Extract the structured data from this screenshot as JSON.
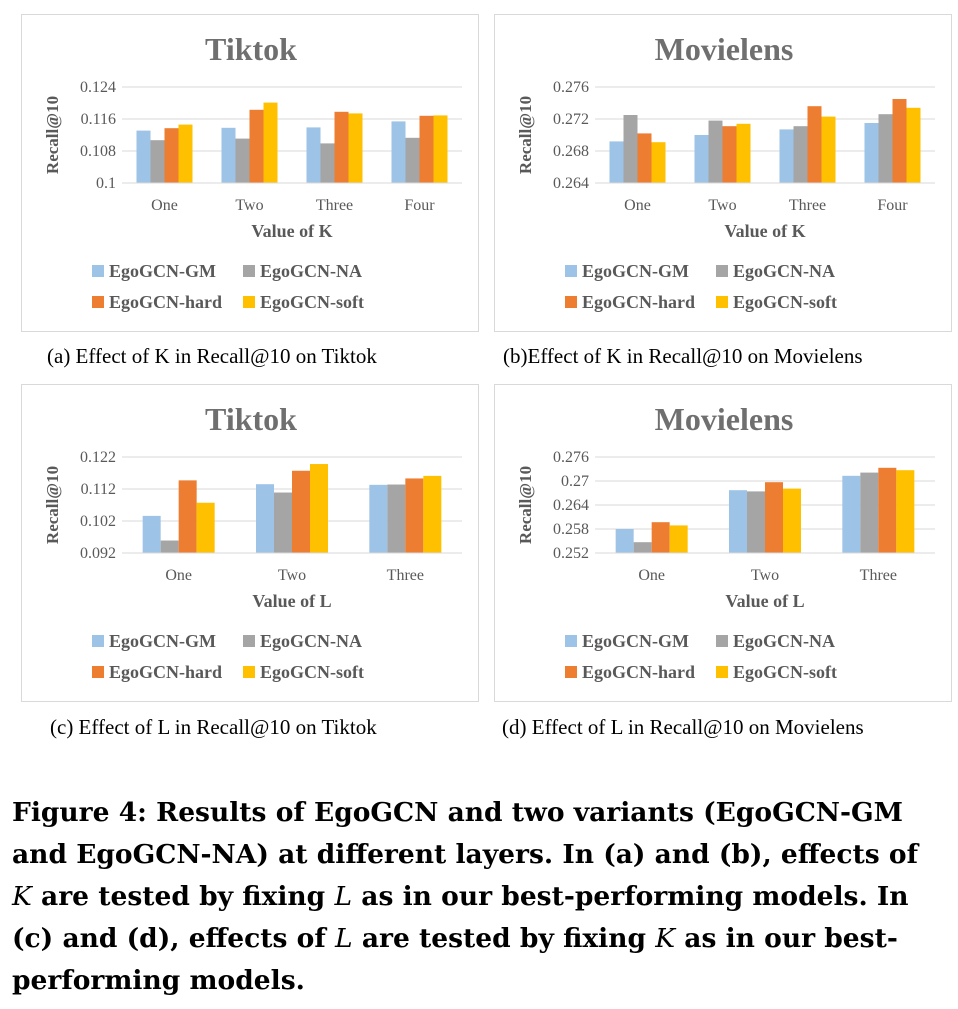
{
  "colors": {
    "gm": "#9dc3e6",
    "na": "#a5a5a5",
    "hard": "#ed7d31",
    "soft": "#ffc000"
  },
  "chart_data": [
    {
      "type": "bar",
      "title": "Tiktok",
      "xlabel": "Value of K",
      "ylabel": "Recall@10",
      "categories": [
        "One",
        "Two",
        "Three",
        "Four"
      ],
      "yticks": [
        "0.1",
        "0.108",
        "0.116",
        "0.124"
      ],
      "ylim": [
        0.1,
        0.124
      ],
      "series": [
        {
          "name": "EgoGCN-GM",
          "color": "#9dc3e6",
          "values": [
            0.1131,
            0.1138,
            0.1139,
            0.1154
          ]
        },
        {
          "name": "EgoGCN-NA",
          "color": "#a5a5a5",
          "values": [
            0.1107,
            0.1111,
            0.1099,
            0.1113
          ]
        },
        {
          "name": "EgoGCN-hard",
          "color": "#ed7d31",
          "values": [
            0.1137,
            0.1183,
            0.1178,
            0.1168
          ]
        },
        {
          "name": "EgoGCN-soft",
          "color": "#ffc000",
          "values": [
            0.1146,
            0.1201,
            0.1174,
            0.1169
          ]
        }
      ],
      "legend_position": "bottom",
      "caption": "(a) Effect of K in Recall@10 on Tiktok"
    },
    {
      "type": "bar",
      "title": "Movielens",
      "xlabel": "Value of K",
      "ylabel": "Recall@10",
      "categories": [
        "One",
        "Two",
        "Three",
        "Four"
      ],
      "yticks": [
        "0.264",
        "0.268",
        "0.272",
        "0.276"
      ],
      "ylim": [
        0.264,
        0.276
      ],
      "series": [
        {
          "name": "EgoGCN-GM",
          "color": "#9dc3e6",
          "values": [
            0.2692,
            0.27,
            0.2707,
            0.2715
          ]
        },
        {
          "name": "EgoGCN-NA",
          "color": "#a5a5a5",
          "values": [
            0.2725,
            0.2718,
            0.2711,
            0.2726
          ]
        },
        {
          "name": "EgoGCN-hard",
          "color": "#ed7d31",
          "values": [
            0.2702,
            0.2711,
            0.2736,
            0.2745
          ]
        },
        {
          "name": "EgoGCN-soft",
          "color": "#ffc000",
          "values": [
            0.2691,
            0.2714,
            0.2723,
            0.2734
          ]
        }
      ],
      "legend_position": "bottom",
      "caption": "(b)Effect of K in Recall@10 on Movielens"
    },
    {
      "type": "bar",
      "title": "Tiktok",
      "xlabel": "Value of L",
      "ylabel": "Recall@10",
      "categories": [
        "One",
        "Two",
        "Three"
      ],
      "yticks": [
        "0.092",
        "0.102",
        "0.112",
        "0.122"
      ],
      "ylim": [
        0.092,
        0.122
      ],
      "series": [
        {
          "name": "EgoGCN-GM",
          "color": "#9dc3e6",
          "values": [
            0.1036,
            0.1135,
            0.1133
          ]
        },
        {
          "name": "EgoGCN-NA",
          "color": "#a5a5a5",
          "values": [
            0.0959,
            0.1109,
            0.1134
          ]
        },
        {
          "name": "EgoGCN-hard",
          "color": "#ed7d31",
          "values": [
            0.1147,
            0.1177,
            0.1153
          ]
        },
        {
          "name": "EgoGCN-soft",
          "color": "#ffc000",
          "values": [
            0.1077,
            0.1198,
            0.1161
          ]
        }
      ],
      "legend_position": "bottom",
      "caption": "(c) Effect of L in Recall@10 on Tiktok"
    },
    {
      "type": "bar",
      "title": "Movielens",
      "xlabel": "Value of L",
      "ylabel": "Recall@10",
      "categories": [
        "One",
        "Two",
        "Three"
      ],
      "yticks": [
        "0.252",
        "0.258",
        "0.264",
        "0.27",
        "0.276"
      ],
      "ylim": [
        0.252,
        0.276
      ],
      "series": [
        {
          "name": "EgoGCN-GM",
          "color": "#9dc3e6",
          "values": [
            0.258,
            0.2677,
            0.2713
          ]
        },
        {
          "name": "EgoGCN-NA",
          "color": "#a5a5a5",
          "values": [
            0.2547,
            0.2674,
            0.2721
          ]
        },
        {
          "name": "EgoGCN-hard",
          "color": "#ed7d31",
          "values": [
            0.2597,
            0.2697,
            0.2733
          ]
        },
        {
          "name": "EgoGCN-soft",
          "color": "#ffc000",
          "values": [
            0.2589,
            0.2681,
            0.2727
          ]
        }
      ],
      "legend_position": "bottom",
      "caption": "(d) Effect of L in Recall@10 on Movielens"
    }
  ],
  "figure_caption": {
    "part1": "Figure 4: Results of EgoGCN and two variants (EgoGCN-GM and EgoGCN-NA) at different layers. In (a) and (b), effects of ",
    "K1": "K",
    "part2": " are tested by fixing ",
    "L1": "L",
    "part3": " as in our best-performing models. In (c) and (d), effects of ",
    "L2": "L",
    "part4": " are tested by fixing ",
    "K2": "K",
    "part5": " as in our best-performing models."
  }
}
